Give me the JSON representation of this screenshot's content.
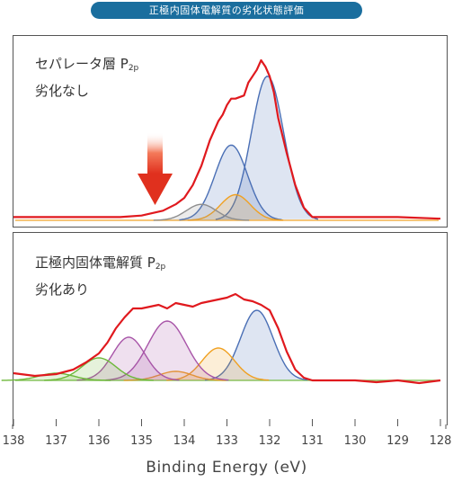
{
  "header": {
    "title": "正極内固体電解質の劣化状態評価"
  },
  "chart_data": [
    {
      "type": "line",
      "panel": "top",
      "title_main": "セパレータ層 P",
      "title_sub": "2p",
      "subtitle": "劣化なし",
      "annotation": "downward red arrow",
      "xlabel": "Binding Energy (eV)",
      "xlim": [
        138,
        128
      ],
      "x_ticks": [
        138,
        137,
        136,
        135,
        134,
        133,
        132,
        131,
        130,
        129,
        128
      ],
      "colors": {
        "measured": "#e0191e",
        "blue": "#4a6fb5",
        "gold": "#f0a020",
        "gray": "#8f8f8f"
      },
      "series": [
        {
          "name": "",
          "role": "measured",
          "x": [
            138,
            137,
            136,
            135.5,
            135,
            134.5,
            134.2,
            134,
            133.8,
            133.6,
            133.4,
            133.2,
            133.1,
            133,
            132.9,
            132.8,
            132.6,
            132.5,
            132.4,
            132.3,
            132.2,
            132.1,
            132,
            131.9,
            131.8,
            131.6,
            131.4,
            131.2,
            131,
            130.5,
            130,
            129,
            128
          ],
          "y": [
            0.02,
            0.02,
            0.02,
            0.02,
            0.03,
            0.06,
            0.1,
            0.14,
            0.22,
            0.34,
            0.5,
            0.62,
            0.66,
            0.72,
            0.76,
            0.76,
            0.78,
            0.86,
            0.9,
            0.94,
            1.0,
            0.96,
            0.9,
            0.8,
            0.64,
            0.42,
            0.22,
            0.08,
            0.02,
            0.02,
            0.02,
            0.02,
            0.01
          ]
        },
        {
          "name": "",
          "role": "component",
          "color": "blue",
          "center": 132.05,
          "height": 0.9,
          "width": 0.38
        },
        {
          "name": "",
          "role": "component",
          "color": "blue",
          "center": 132.9,
          "height": 0.47,
          "width": 0.38
        },
        {
          "name": "",
          "role": "component",
          "color": "gold",
          "center": 132.8,
          "height": 0.16,
          "width": 0.35
        },
        {
          "name": "",
          "role": "component",
          "color": "gray",
          "center": 133.6,
          "height": 0.1,
          "width": 0.35
        }
      ]
    },
    {
      "type": "line",
      "panel": "bottom",
      "title_main": "正極内固体電解質 P",
      "title_sub": "2p",
      "subtitle": "劣化あり",
      "xlabel": "Binding Energy (eV)",
      "xlim": [
        138,
        128
      ],
      "x_ticks": [
        138,
        137,
        136,
        135,
        134,
        133,
        132,
        131,
        130,
        129,
        128
      ],
      "colors": {
        "measured": "#e0191e",
        "blue": "#4a6fb5",
        "gold": "#f0a020",
        "magenta": "#a855a8",
        "green": "#6db83a"
      },
      "series": [
        {
          "name": "",
          "role": "measured",
          "x": [
            138,
            137.5,
            137,
            136.6,
            136.3,
            136,
            135.8,
            135.6,
            135.4,
            135.2,
            135,
            134.8,
            134.6,
            134.4,
            134.2,
            134,
            133.8,
            133.6,
            133.4,
            133.2,
            133,
            132.8,
            132.6,
            132.4,
            132.2,
            132,
            131.8,
            131.6,
            131.4,
            131.2,
            131,
            130.5,
            130,
            129.5,
            129,
            128.5,
            128
          ],
          "y": [
            0.08,
            0.05,
            0.07,
            0.12,
            0.2,
            0.3,
            0.42,
            0.58,
            0.7,
            0.8,
            0.8,
            0.82,
            0.84,
            0.8,
            0.86,
            0.84,
            0.82,
            0.86,
            0.88,
            0.9,
            0.92,
            0.96,
            0.9,
            0.88,
            0.84,
            0.78,
            0.58,
            0.32,
            0.12,
            0.03,
            0.0,
            0.0,
            0.0,
            -0.02,
            0.0,
            -0.03,
            0.0
          ]
        },
        {
          "name": "",
          "role": "component",
          "color": "blue",
          "center": 132.3,
          "height": 0.78,
          "width": 0.38
        },
        {
          "name": "",
          "role": "component",
          "color": "gold",
          "center": 133.2,
          "height": 0.36,
          "width": 0.38
        },
        {
          "name": "",
          "role": "component",
          "color": "gold",
          "center": 134.2,
          "height": 0.1,
          "width": 0.38
        },
        {
          "name": "",
          "role": "component",
          "color": "magenta",
          "center": 134.4,
          "height": 0.66,
          "width": 0.45
        },
        {
          "name": "",
          "role": "component",
          "color": "magenta",
          "center": 135.3,
          "height": 0.48,
          "width": 0.38
        },
        {
          "name": "",
          "role": "component",
          "color": "green",
          "center": 136.0,
          "height": 0.25,
          "width": 0.4
        },
        {
          "name": "",
          "role": "component",
          "color": "green",
          "center": 137.0,
          "height": 0.08,
          "width": 0.4
        }
      ]
    }
  ]
}
